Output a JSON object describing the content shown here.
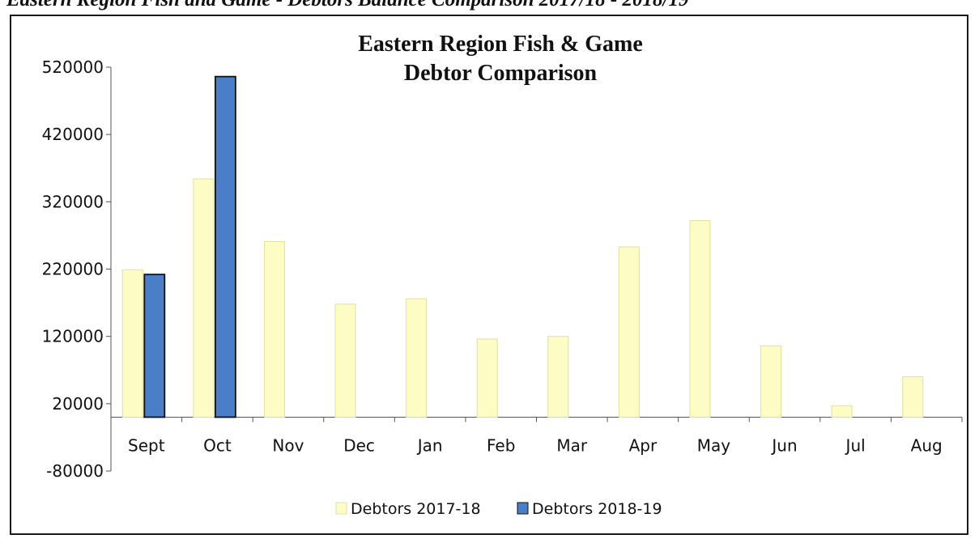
{
  "document": {
    "heading": "Eastern Region Fish and Game - Debtors Balance Comparison 2017/18 - 2018/19"
  },
  "colors": {
    "series_2017": "#fdfcc4",
    "series_2017_stroke": "#e2e0a0",
    "series_2018": "#4a7fc8",
    "series_2018_stroke": "#111111",
    "axis": "#555555"
  },
  "chart_data": {
    "type": "bar",
    "title_lines": [
      "Eastern Region Fish & Game",
      "Debtor Comparison"
    ],
    "categories": [
      "Sept",
      "Oct",
      "Nov",
      "Dec",
      "Jan",
      "Feb",
      "Mar",
      "Apr",
      "May",
      "Jun",
      "Jul",
      "Aug"
    ],
    "series": [
      {
        "name": "Debtors 2017-18",
        "values": [
          219000,
          354000,
          261000,
          168000,
          176000,
          116000,
          120000,
          253000,
          292000,
          106000,
          17000,
          60000
        ]
      },
      {
        "name": "Debtors 2018-19",
        "values": [
          212000,
          506000,
          null,
          null,
          null,
          null,
          null,
          null,
          null,
          null,
          null,
          null
        ]
      }
    ],
    "y_ticks": [
      520000,
      420000,
      320000,
      220000,
      120000,
      20000,
      -80000
    ],
    "ylim": [
      -80000,
      520000
    ],
    "grid": false,
    "legend_position": "bottom"
  }
}
